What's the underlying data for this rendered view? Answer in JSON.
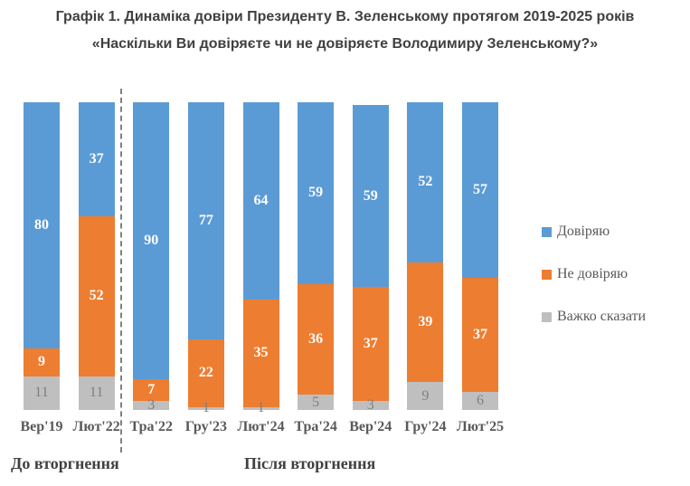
{
  "title": {
    "line1": "Графік 1. Динаміка довіри Президенту В. Зеленському протягом 2019-2025 років",
    "line2": "«Наскільки Ви довіряєте чи не довіряєте Володимиру Зеленському?»"
  },
  "chart_data": {
    "type": "bar",
    "stacked": true,
    "categories": [
      "Вер'19",
      "Лют'22",
      "Тра'22",
      "Гру'23",
      "Лют'24",
      "Тра'24",
      "Вер'24",
      "Гру'24",
      "Лют'25"
    ],
    "series": [
      {
        "name": "Довіряю",
        "color": "#5B9BD5",
        "values": [
          80,
          37,
          90,
          77,
          64,
          59,
          59,
          52,
          57
        ]
      },
      {
        "name": "Не довіряю",
        "color": "#ED7D31",
        "values": [
          9,
          52,
          7,
          22,
          35,
          36,
          37,
          39,
          37
        ]
      },
      {
        "name": "Важко сказати",
        "color": "#BFBFBF",
        "values": [
          11,
          11,
          3,
          1,
          1,
          5,
          3,
          9,
          6
        ]
      }
    ],
    "ylim": [
      0,
      100
    ],
    "grid": false,
    "legend_position": "right",
    "value_labels": "inside-center",
    "divider": {
      "between": [
        "Лют'22",
        "Тра'22"
      ],
      "style": "dashed"
    },
    "annotations": [
      {
        "text": "До вторгнення",
        "position": "below-left"
      },
      {
        "text": "Після вторгнення",
        "position": "below-center"
      }
    ]
  },
  "colors": {
    "trust": "#5B9BD5",
    "no_trust": "#ED7D31",
    "hard_to_say": "#BFBFBF",
    "axis_text": "#595959",
    "title_text": "#404040",
    "gray_label_text": "#808080"
  }
}
